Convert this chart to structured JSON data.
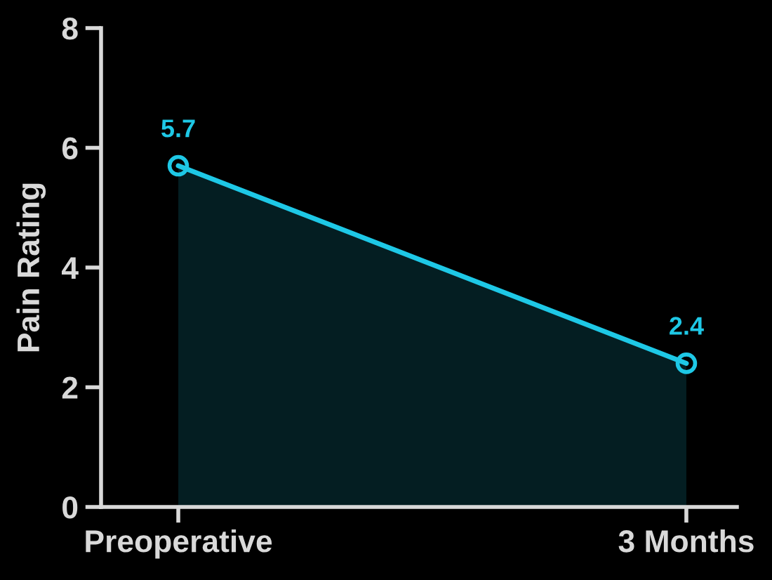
{
  "chart_data": {
    "type": "area",
    "ylabel": "Pain Rating",
    "categories": [
      "Preoperative",
      "3 Months"
    ],
    "series": [
      {
        "color": "#1ec8e6",
        "values": [
          5.7,
          2.4
        ]
      }
    ],
    "ylim": [
      0,
      8
    ],
    "yticks": [
      0,
      2,
      4,
      6,
      8
    ],
    "grid": false,
    "marker": "circle",
    "line_style": "solid",
    "data_labels": true
  }
}
